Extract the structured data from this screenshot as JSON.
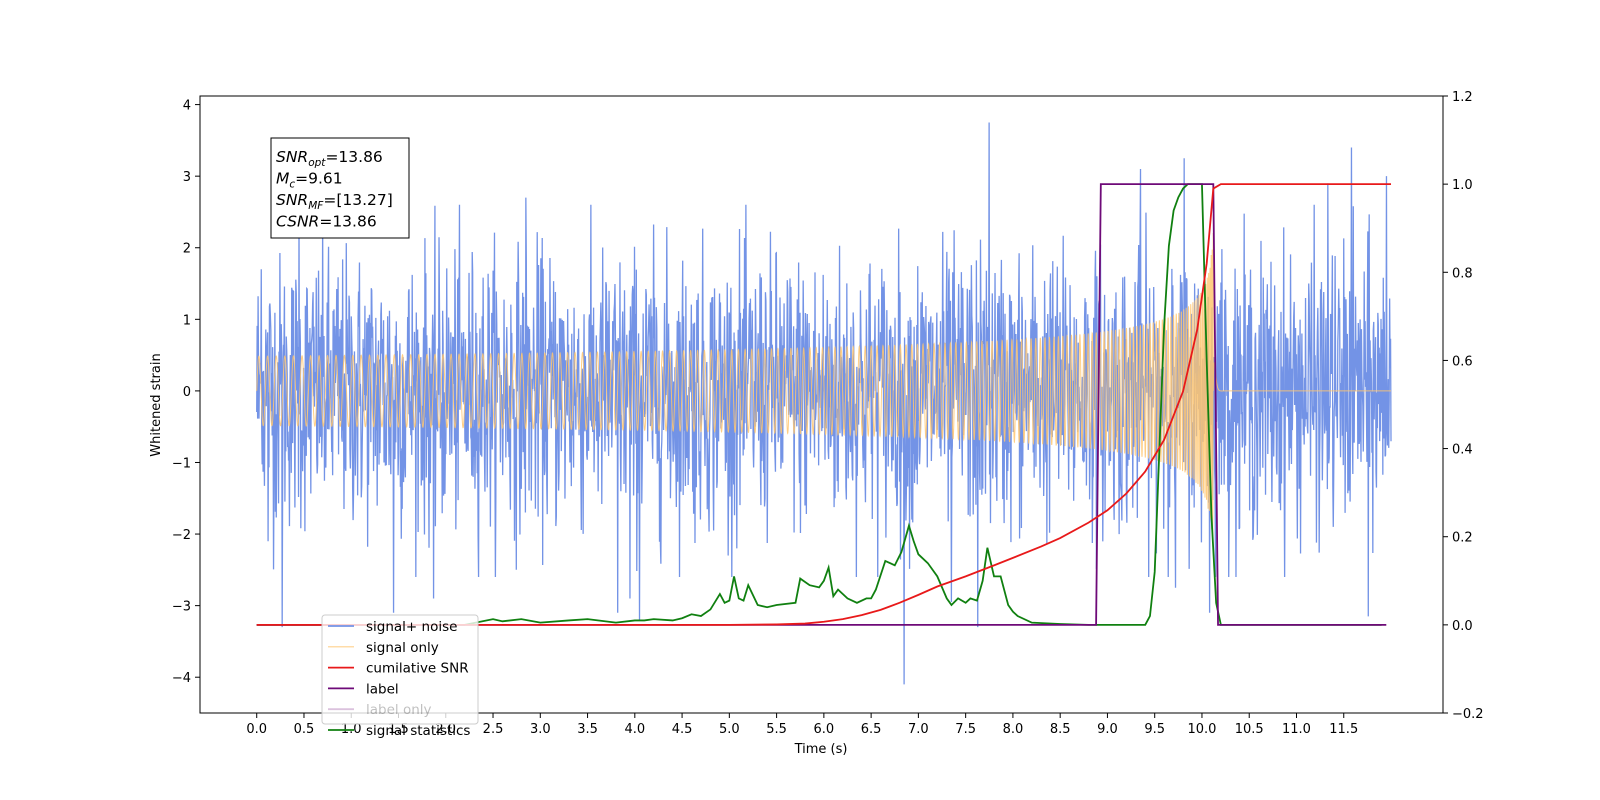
{
  "chart_data": {
    "type": "line",
    "xlabel": "Time (s)",
    "ylabel": "Whitened strain",
    "xlim": [
      -0.6,
      12.55
    ],
    "ylim": [
      -4.5,
      4.12
    ],
    "y2lim": [
      -0.2,
      1.2
    ],
    "x_ticks": [
      "0.0",
      "0.5",
      "1.0",
      "1.5",
      "2.0",
      "2.5",
      "3.0",
      "3.5",
      "4.0",
      "4.5",
      "5.0",
      "5.5",
      "6.0",
      "6.5",
      "7.0",
      "7.5",
      "8.0",
      "8.5",
      "9.0",
      "9.5",
      "10.0",
      "10.5",
      "11.0",
      "11.5"
    ],
    "y_ticks": [
      "4",
      "3",
      "2",
      "1",
      "0",
      "−1",
      "−2",
      "−3",
      "−4"
    ],
    "y2_ticks": [
      "1.2",
      "1.0",
      "0.8",
      "0.6",
      "0.4",
      "0.2",
      "0.0",
      "−0.2"
    ],
    "annotation": {
      "lines": [
        {
          "base": "SNR",
          "sub": "opt",
          "text": "=13.86"
        },
        {
          "base": "M",
          "sub": "c",
          "text": "=9.61"
        },
        {
          "base": "SNR",
          "sub": "MF",
          "text": "=[13.27]"
        },
        {
          "base": "CSNR",
          "sub": "",
          "text": "=13.86"
        }
      ]
    },
    "legend": {
      "placement": "lower-left",
      "entries": [
        {
          "label": "signal+ noise",
          "color": "#7393e6"
        },
        {
          "label": "signal only",
          "color": "#ffc66e"
        },
        {
          "label": "cumilative SNR",
          "color": "#e8191a"
        },
        {
          "label": "label",
          "color": "#6e0a78"
        },
        {
          "label": "label only",
          "color": "#6e0a78"
        },
        {
          "label": "signal statistics",
          "color": "#108010"
        }
      ]
    },
    "series": [
      {
        "name": "signal+ noise",
        "axis": "left",
        "color": "#7393e6",
        "x_range": [
          0.0,
          12.0
        ],
        "noise_sigma": 0.95,
        "peaks": [
          [
            0.05,
            1.7
          ],
          [
            0.12,
            -2.1
          ],
          [
            0.27,
            -3.3
          ],
          [
            0.45,
            2.5
          ],
          [
            1.45,
            -3.1
          ],
          [
            1.87,
            -2.9
          ],
          [
            2.85,
            2.7
          ],
          [
            3.82,
            -3.1
          ],
          [
            3.95,
            -2.9
          ],
          [
            4.05,
            -3.2
          ],
          [
            6.85,
            -4.1
          ],
          [
            7.35,
            -2.95
          ],
          [
            7.63,
            -3.3
          ],
          [
            7.75,
            3.75
          ],
          [
            9.35,
            3.1
          ],
          [
            9.72,
            -2.75
          ],
          [
            9.81,
            3.25
          ],
          [
            10.08,
            -3.1
          ],
          [
            11.33,
            2.9
          ],
          [
            11.58,
            3.4
          ],
          [
            11.76,
            -3.15
          ],
          [
            11.95,
            3.0
          ]
        ]
      },
      {
        "name": "signal only",
        "axis": "left",
        "color": "#ffc66e",
        "x_range": [
          0.0,
          12.0
        ],
        "merger_time": 10.12,
        "peak_amplitude": 2.3
      },
      {
        "name": "cumilative SNR",
        "axis": "right",
        "color": "#e8191a",
        "x": [
          0.0,
          5.0,
          5.5,
          5.8,
          6.0,
          6.2,
          6.4,
          6.6,
          6.8,
          7.0,
          7.2,
          7.5,
          7.8,
          8.0,
          8.3,
          8.5,
          8.8,
          9.0,
          9.2,
          9.4,
          9.6,
          9.8,
          9.95,
          10.05,
          10.12,
          10.2,
          12.0
        ],
        "values": [
          0.0,
          0.0,
          0.001,
          0.003,
          0.007,
          0.013,
          0.022,
          0.034,
          0.05,
          0.068,
          0.087,
          0.11,
          0.135,
          0.152,
          0.178,
          0.197,
          0.232,
          0.26,
          0.298,
          0.348,
          0.42,
          0.53,
          0.67,
          0.82,
          0.99,
          1.0,
          1.0
        ]
      },
      {
        "name": "label",
        "axis": "right",
        "color": "#6e0a78",
        "x": [
          0.0,
          8.88,
          8.93,
          10.12,
          10.17,
          11.95
        ],
        "values": [
          0.0,
          0.0,
          1.0,
          1.0,
          0.0,
          0.0
        ]
      },
      {
        "name": "signal statistics",
        "axis": "right",
        "color": "#108010",
        "x": [
          0.0,
          2.2,
          2.5,
          2.6,
          2.8,
          3.0,
          3.3,
          3.5,
          3.8,
          4.0,
          4.1,
          4.2,
          4.4,
          4.5,
          4.6,
          4.7,
          4.8,
          4.9,
          4.95,
          5.0,
          5.05,
          5.1,
          5.15,
          5.2,
          5.3,
          5.4,
          5.5,
          5.7,
          5.75,
          5.85,
          5.95,
          6.0,
          6.05,
          6.1,
          6.15,
          6.25,
          6.35,
          6.45,
          6.5,
          6.55,
          6.65,
          6.75,
          6.82,
          6.9,
          6.95,
          7.0,
          7.1,
          7.2,
          7.3,
          7.35,
          7.42,
          7.5,
          7.55,
          7.62,
          7.68,
          7.73,
          7.8,
          7.87,
          7.95,
          8.0,
          8.05,
          8.2,
          8.5,
          8.8,
          9.4,
          9.45,
          9.5,
          9.55,
          9.6,
          9.65,
          9.7,
          9.75,
          9.8,
          9.85,
          9.9,
          9.95,
          10.0,
          10.05,
          10.1,
          10.15,
          10.2,
          11.9
        ],
        "values": [
          0.0,
          0.0,
          0.013,
          0.008,
          0.013,
          0.005,
          0.01,
          0.013,
          0.005,
          0.01,
          0.01,
          0.013,
          0.01,
          0.015,
          0.024,
          0.02,
          0.035,
          0.07,
          0.05,
          0.055,
          0.11,
          0.06,
          0.055,
          0.09,
          0.045,
          0.04,
          0.045,
          0.05,
          0.105,
          0.09,
          0.085,
          0.1,
          0.13,
          0.065,
          0.08,
          0.06,
          0.05,
          0.06,
          0.06,
          0.08,
          0.145,
          0.135,
          0.165,
          0.225,
          0.19,
          0.16,
          0.14,
          0.11,
          0.06,
          0.045,
          0.06,
          0.05,
          0.06,
          0.055,
          0.1,
          0.175,
          0.11,
          0.11,
          0.045,
          0.03,
          0.02,
          0.005,
          0.002,
          0.0,
          0.0,
          0.02,
          0.12,
          0.4,
          0.68,
          0.86,
          0.94,
          0.97,
          0.99,
          1.0,
          1.0,
          1.0,
          1.0,
          0.6,
          0.25,
          0.05,
          0.0,
          0.0
        ]
      }
    ]
  }
}
